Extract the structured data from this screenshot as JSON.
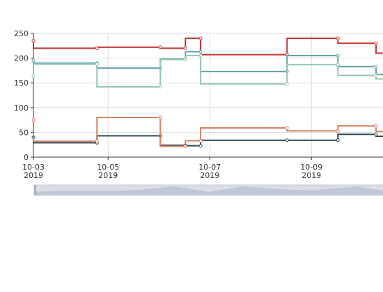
{
  "chart_data": {
    "type": "step-line",
    "x": [
      "2019-10-03T12:45",
      "2019-10-04T18:45",
      "2019-10-06T00:40",
      "2019-10-06T12:30",
      "2019-10-06T19:40",
      "2019-10-08T12:30",
      "2019-10-09T12:30",
      "2019-10-10T06:30",
      "2019-10-11T00:00"
    ],
    "series": [
      {
        "color": "#c23531",
        "values": [
          235,
          220,
          222,
          220,
          240,
          207,
          240,
          230,
          210
        ]
      },
      {
        "color": "#2f4554",
        "values": [
          40,
          29,
          43,
          24,
          23,
          34,
          34,
          46,
          42
        ]
      },
      {
        "color": "#61a0a8",
        "values": [
          195,
          190,
          180,
          198,
          213,
          173,
          205,
          183,
          167
        ]
      },
      {
        "color": "#d48265",
        "values": [
          75,
          32,
          80,
          22,
          33,
          59,
          53,
          63,
          52
        ]
      },
      {
        "color": "#91c7ae",
        "values": [
          165,
          188,
          142,
          197,
          205,
          148,
          187,
          165,
          158
        ]
      }
    ],
    "xlim": [
      "2019-10-03T12:45",
      "2019-10-10T10:00"
    ],
    "xticks": [
      {
        "value": "2019-10-03T12:45",
        "label": "10-03\n2019"
      },
      {
        "value": "2019-10-05T00:00",
        "label": "10-05\n2019"
      },
      {
        "value": "2019-10-07T00:00",
        "label": "10-07\n2019"
      },
      {
        "value": "2019-10-09T00:00",
        "label": "10-09\n2019"
      }
    ],
    "ylim": [
      0,
      250
    ],
    "yticks": [
      0,
      50,
      100,
      150,
      200,
      250
    ],
    "grid": true
  }
}
